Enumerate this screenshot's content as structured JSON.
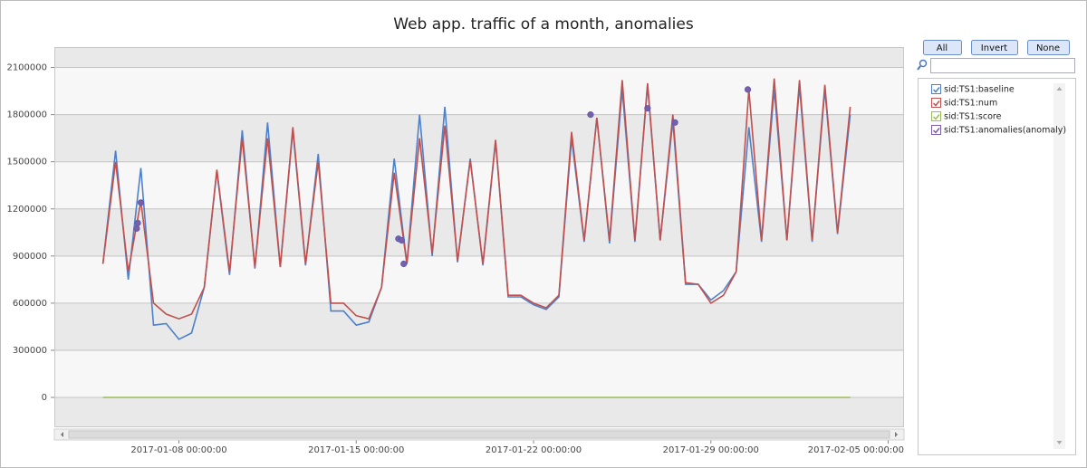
{
  "chart_data": {
    "type": "line",
    "title": "Web app. traffic of a month, anomalies",
    "x": [
      "2017-01-05 00:00:00",
      "2017-01-05 12:00:00",
      "2017-01-06 00:00:00",
      "2017-01-06 12:00:00",
      "2017-01-07 00:00:00",
      "2017-01-07 12:00:00",
      "2017-01-08 00:00:00",
      "2017-01-08 12:00:00",
      "2017-01-09 00:00:00",
      "2017-01-09 12:00:00",
      "2017-01-10 00:00:00",
      "2017-01-10 12:00:00",
      "2017-01-11 00:00:00",
      "2017-01-11 12:00:00",
      "2017-01-12 00:00:00",
      "2017-01-12 12:00:00",
      "2017-01-13 00:00:00",
      "2017-01-13 12:00:00",
      "2017-01-14 00:00:00",
      "2017-01-14 12:00:00",
      "2017-01-15 00:00:00",
      "2017-01-15 12:00:00",
      "2017-01-16 00:00:00",
      "2017-01-16 12:00:00",
      "2017-01-17 00:00:00",
      "2017-01-17 12:00:00",
      "2017-01-18 00:00:00",
      "2017-01-18 12:00:00",
      "2017-01-19 00:00:00",
      "2017-01-19 12:00:00",
      "2017-01-20 00:00:00",
      "2017-01-20 12:00:00",
      "2017-01-21 00:00:00",
      "2017-01-21 12:00:00",
      "2017-01-22 00:00:00",
      "2017-01-22 12:00:00",
      "2017-01-23 00:00:00",
      "2017-01-23 12:00:00",
      "2017-01-24 00:00:00",
      "2017-01-24 12:00:00",
      "2017-01-25 00:00:00",
      "2017-01-25 12:00:00",
      "2017-01-26 00:00:00",
      "2017-01-26 12:00:00",
      "2017-01-27 00:00:00",
      "2017-01-27 12:00:00",
      "2017-01-28 00:00:00",
      "2017-01-28 12:00:00",
      "2017-01-29 00:00:00",
      "2017-01-29 12:00:00",
      "2017-01-30 00:00:00",
      "2017-01-30 12:00:00",
      "2017-01-31 00:00:00",
      "2017-01-31 12:00:00",
      "2017-02-01 00:00:00",
      "2017-02-01 12:00:00",
      "2017-02-02 00:00:00",
      "2017-02-02 12:00:00",
      "2017-02-03 00:00:00",
      "2017-02-03 12:00:00"
    ],
    "series": [
      {
        "name": "sid:TS1:baseline",
        "color": "#4f81c9",
        "values": [
          850000,
          1570000,
          750000,
          1460000,
          460000,
          470000,
          370000,
          410000,
          700000,
          1440000,
          780000,
          1700000,
          820000,
          1750000,
          830000,
          1700000,
          840000,
          1550000,
          550000,
          550000,
          460000,
          480000,
          700000,
          1520000,
          850000,
          1800000,
          900000,
          1850000,
          860000,
          1520000,
          840000,
          1630000,
          640000,
          640000,
          590000,
          560000,
          640000,
          1650000,
          990000,
          1780000,
          980000,
          1960000,
          990000,
          1990000,
          1000000,
          1760000,
          720000,
          720000,
          620000,
          680000,
          800000,
          1720000,
          990000,
          1960000,
          1000000,
          1980000,
          990000,
          1960000,
          1040000,
          1800000
        ]
      },
      {
        "name": "sid:TS1:num",
        "color": "#c0504d",
        "values": [
          850000,
          1500000,
          800000,
          1250000,
          600000,
          530000,
          500000,
          530000,
          700000,
          1450000,
          800000,
          1650000,
          830000,
          1650000,
          830000,
          1720000,
          850000,
          1500000,
          600000,
          600000,
          520000,
          500000,
          700000,
          1430000,
          850000,
          1650000,
          920000,
          1730000,
          870000,
          1510000,
          850000,
          1640000,
          650000,
          650000,
          600000,
          570000,
          650000,
          1690000,
          1000000,
          1780000,
          1000000,
          2020000,
          1000000,
          2000000,
          1000000,
          1800000,
          730000,
          720000,
          600000,
          650000,
          800000,
          1960000,
          1000000,
          2030000,
          1000000,
          2020000,
          1000000,
          1990000,
          1050000,
          1850000
        ]
      },
      {
        "name": "sid:TS1:score",
        "color": "#9bbb59",
        "x": [
          "2017-01-05 00:00:00",
          "2017-02-03 12:00:00"
        ],
        "values": [
          0,
          0
        ]
      },
      {
        "name": "sid:TS1:anomalies(anomaly)",
        "color": "#7a5ea8",
        "type": "scatter",
        "x": [
          "2017-01-06 08:00:00",
          "2017-01-06 09:00:00",
          "2017-01-06 12:00:00",
          "2017-01-16 16:00:00",
          "2017-01-16 19:00:00",
          "2017-01-16 21:00:00",
          "2017-01-24 06:00:00",
          "2017-01-26 12:00:00",
          "2017-01-27 14:00:00",
          "2017-01-30 11:00:00"
        ],
        "values": [
          1075000,
          1110000,
          1240000,
          1010000,
          1000000,
          850000,
          1800000,
          1840000,
          1750000,
          1960000
        ]
      }
    ],
    "xlim": [
      "2017-01-03 02:00:00",
      "2017-02-05 15:00:00"
    ],
    "xticks": [
      "2017-01-08 00:00:00",
      "2017-01-15 00:00:00",
      "2017-01-22 00:00:00",
      "2017-01-29 00:00:00",
      "2017-02-05 00:00:00"
    ],
    "ylim": [
      -190000,
      2230000
    ],
    "yticks": [
      0,
      300000,
      600000,
      900000,
      1200000,
      1500000,
      1800000,
      2100000
    ],
    "grid": true
  },
  "ui": {
    "buttons": [
      "All",
      "Invert",
      "None"
    ]
  }
}
